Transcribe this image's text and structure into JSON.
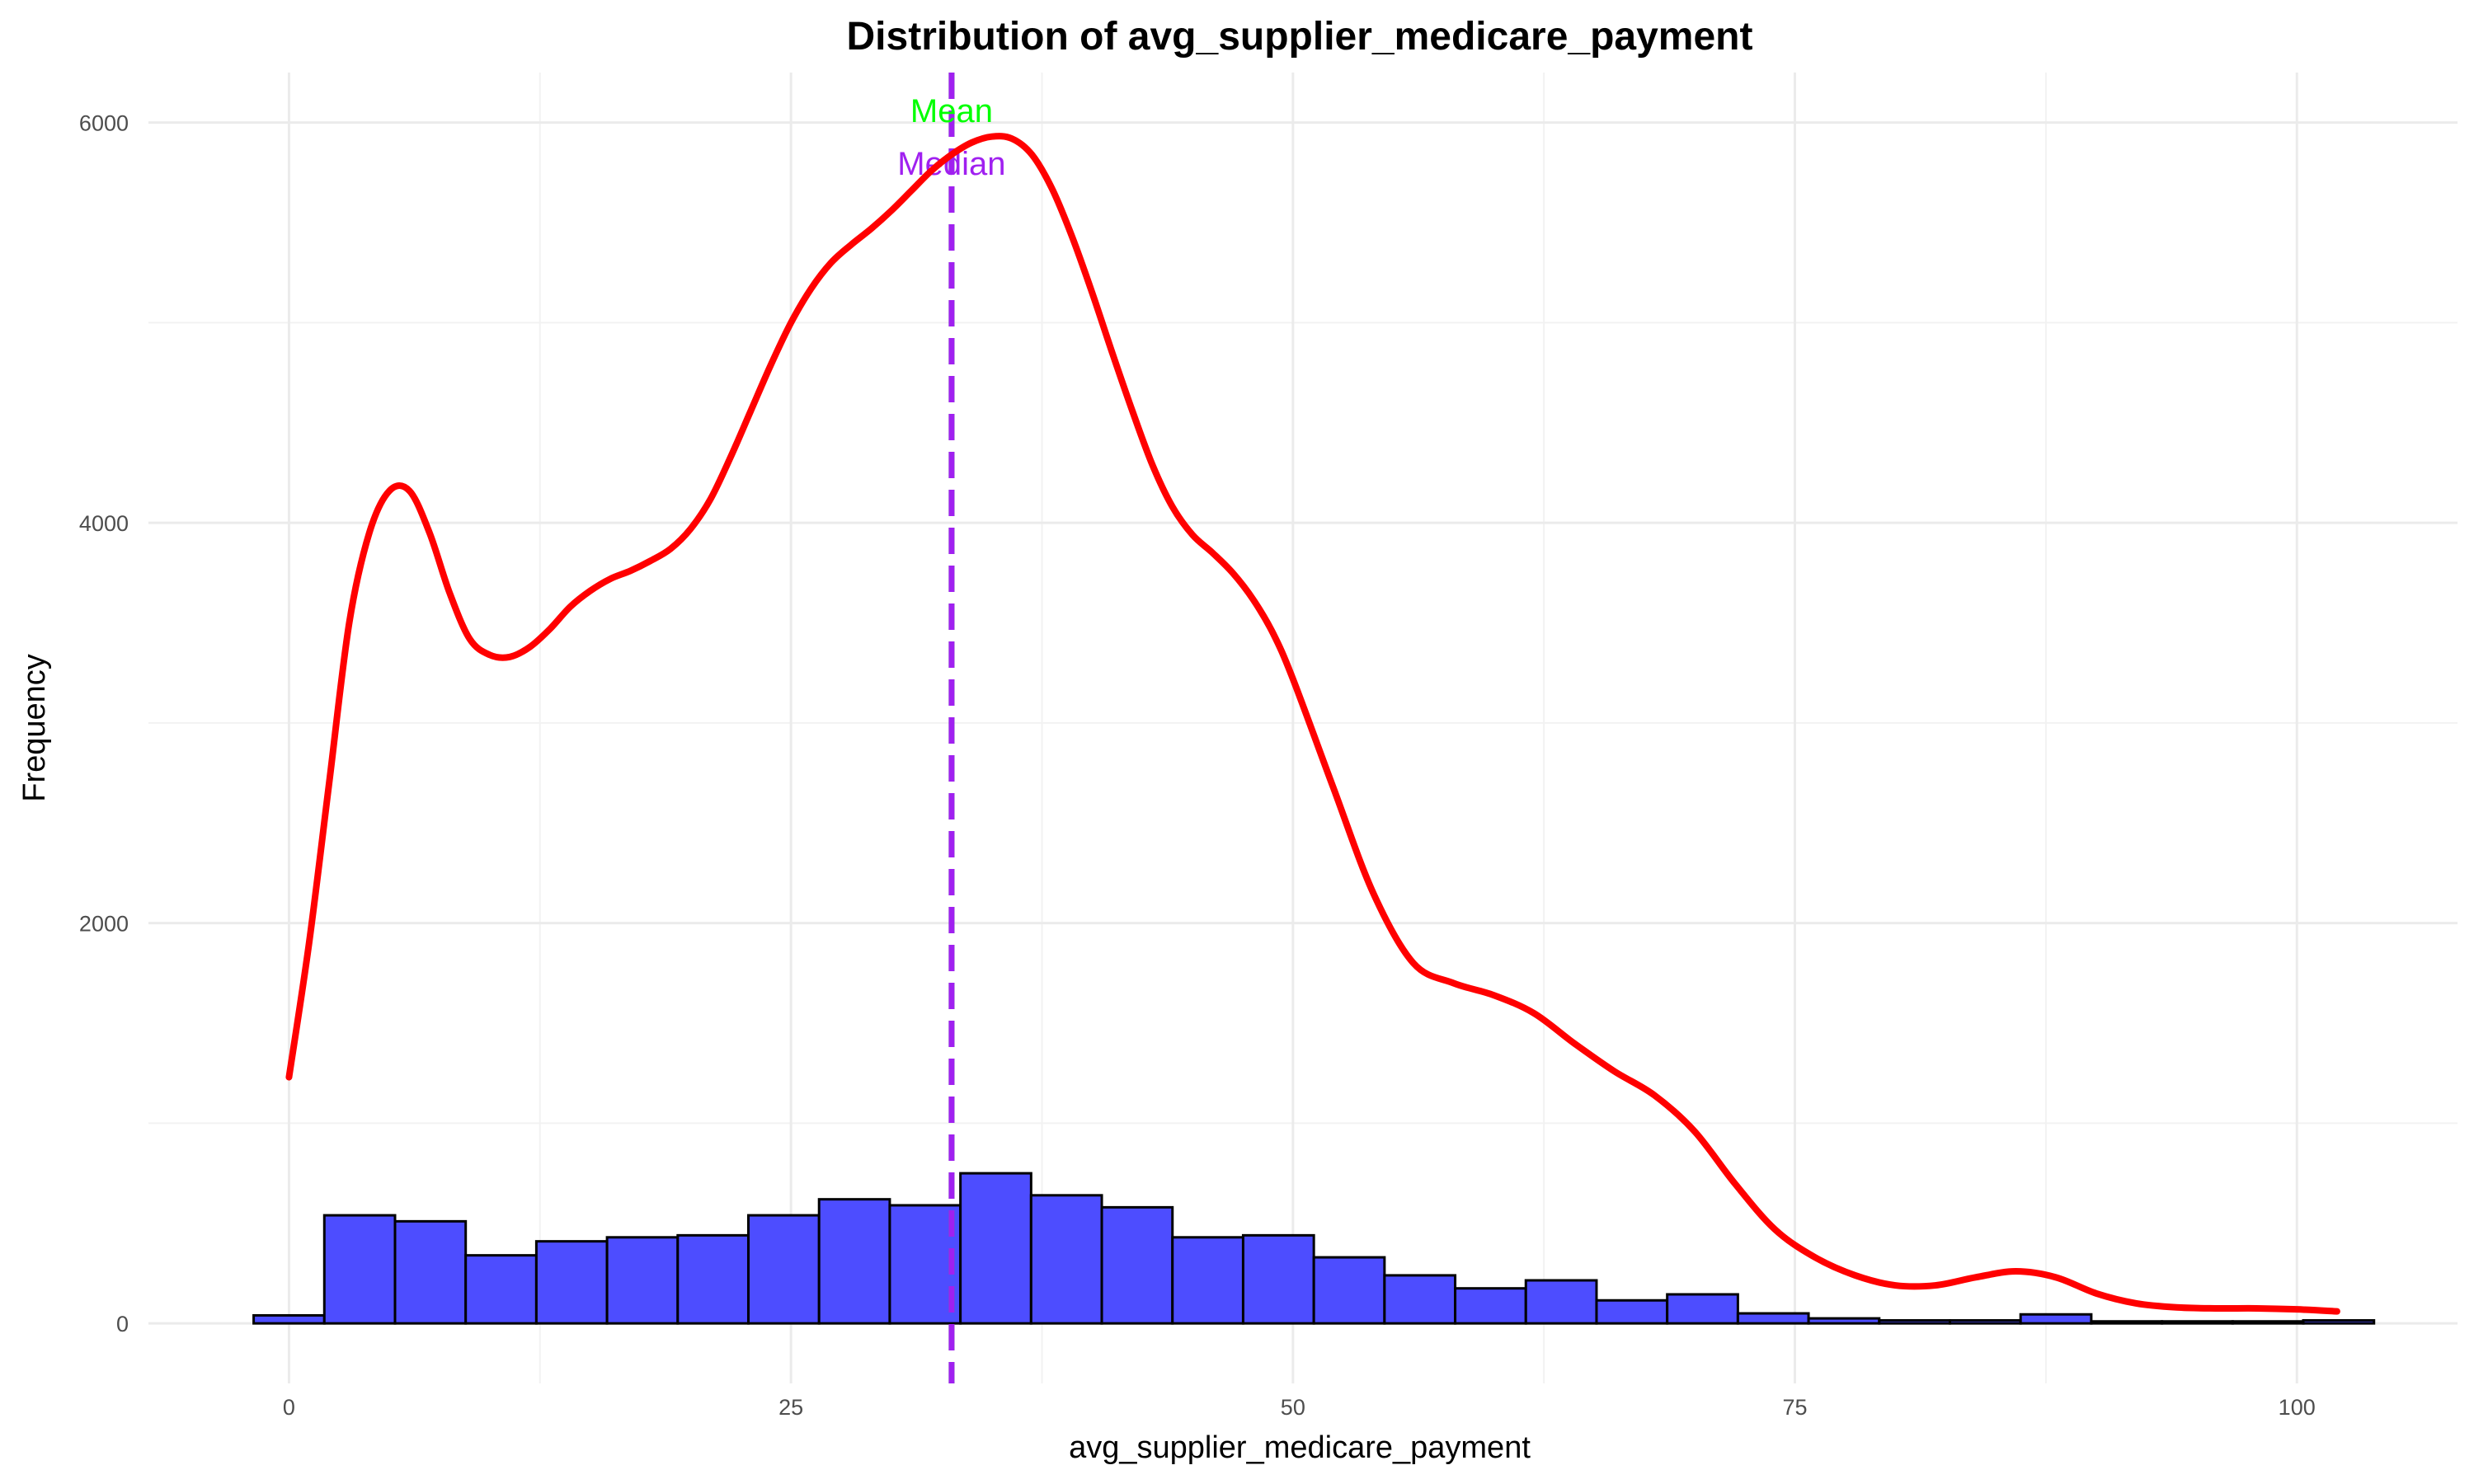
{
  "chart_data": {
    "type": "bar",
    "title": "Distribution of avg_supplier_medicare_payment",
    "xlabel": "avg_supplier_medicare_payment",
    "ylabel": "Frequency",
    "xlim": [
      -7,
      108
    ],
    "ylim": [
      -300,
      6250
    ],
    "x_ticks": [
      0,
      25,
      50,
      75,
      100
    ],
    "y_ticks": [
      0,
      2000,
      4000,
      6000
    ],
    "x_tick_labels": [
      "0",
      "25",
      "50",
      "75",
      "100"
    ],
    "y_tick_labels": [
      "0",
      "2000",
      "4000",
      "6000"
    ],
    "grid": true,
    "legend": "none",
    "histogram": {
      "name": "",
      "bin_edges": [
        -1.76,
        1.76,
        5.28,
        8.8,
        12.32,
        15.84,
        19.36,
        22.88,
        26.4,
        29.92,
        33.44,
        36.96,
        40.48,
        44.0,
        47.52,
        51.04,
        54.56,
        58.08,
        61.6,
        65.12,
        68.64,
        72.16,
        75.68,
        79.2,
        82.72,
        86.24,
        89.76,
        93.28,
        96.8,
        100.32,
        103.84
      ],
      "counts": [
        40,
        540,
        510,
        340,
        410,
        430,
        440,
        540,
        620,
        590,
        750,
        640,
        580,
        430,
        440,
        330,
        240,
        175,
        215,
        115,
        145,
        50,
        25,
        15,
        15,
        45,
        10,
        10,
        10,
        15
      ],
      "fill_color": "#4d4dff",
      "edge_color": "#000000"
    },
    "density_curve": {
      "name": "",
      "color": "#ff0000",
      "x": [
        0,
        1,
        2,
        3,
        4,
        5,
        6,
        7,
        8,
        9,
        10,
        11,
        12,
        13,
        14,
        15,
        16,
        17,
        18,
        19,
        20,
        21,
        22,
        23,
        24,
        25,
        26,
        27,
        28,
        29,
        30,
        31,
        32,
        33,
        34,
        35,
        36,
        37,
        38,
        39,
        40,
        41,
        42,
        43,
        44,
        45,
        46,
        47,
        48,
        49,
        50,
        52,
        54,
        56,
        58,
        60,
        62,
        64,
        66,
        68,
        70,
        72,
        74,
        76,
        78,
        80,
        82,
        84,
        86,
        88,
        90,
        92,
        94,
        96,
        98,
        100,
        102
      ],
      "y": [
        1230,
        1900,
        2700,
        3500,
        3950,
        4160,
        4160,
        3950,
        3650,
        3420,
        3340,
        3330,
        3380,
        3470,
        3580,
        3660,
        3720,
        3760,
        3810,
        3870,
        3970,
        4120,
        4330,
        4560,
        4790,
        5000,
        5170,
        5300,
        5390,
        5470,
        5560,
        5660,
        5760,
        5840,
        5900,
        5930,
        5920,
        5840,
        5670,
        5430,
        5150,
        4850,
        4560,
        4290,
        4080,
        3940,
        3850,
        3750,
        3620,
        3450,
        3220,
        2680,
        2150,
        1800,
        1700,
        1640,
        1550,
        1400,
        1260,
        1140,
        960,
        700,
        470,
        330,
        240,
        190,
        190,
        230,
        260,
        230,
        150,
        100,
        80,
        75,
        75,
        70,
        60
      ]
    },
    "reference_lines": [
      {
        "label": "Mean",
        "value": 33.0,
        "color": "#00ff00",
        "style": "dashed"
      },
      {
        "label": "Median",
        "value": 33.0,
        "color": "#a020f0",
        "style": "dashed"
      }
    ]
  }
}
